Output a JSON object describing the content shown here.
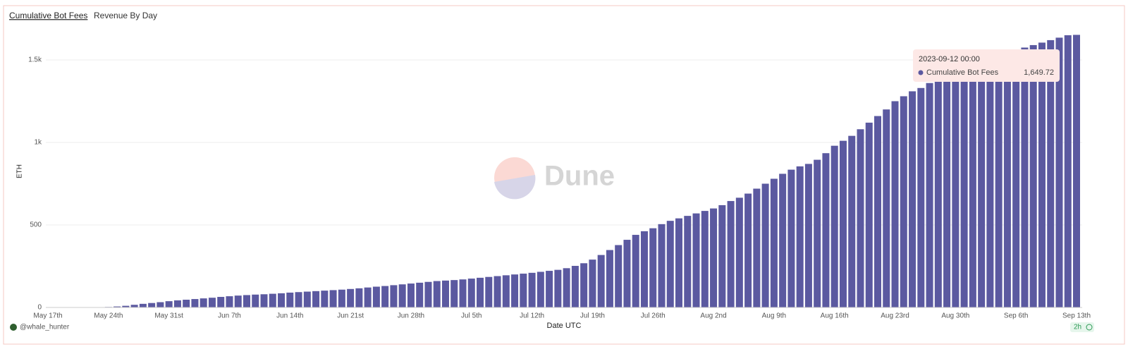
{
  "tabs": [
    "Cumulative Bot Fees",
    "Revenue By Day"
  ],
  "chart_data": {
    "type": "bar",
    "y_label": "ETH",
    "x_label": "Date UTC",
    "watermark": "Dune",
    "categories": [
      "May 17th",
      null,
      null,
      null,
      null,
      null,
      null,
      "May 24th",
      null,
      null,
      null,
      null,
      null,
      null,
      "May 31st",
      null,
      null,
      null,
      null,
      null,
      null,
      "Jun 7th",
      null,
      null,
      null,
      null,
      null,
      null,
      "Jun 14th",
      null,
      null,
      null,
      null,
      null,
      null,
      "Jun 21st",
      null,
      null,
      null,
      null,
      null,
      null,
      "Jun 28th",
      null,
      null,
      null,
      null,
      null,
      null,
      "Jul 5th",
      null,
      null,
      null,
      null,
      null,
      null,
      "Jul 12th",
      null,
      null,
      null,
      null,
      null,
      null,
      "Jul 19th",
      null,
      null,
      null,
      null,
      null,
      null,
      "Jul 26th",
      null,
      null,
      null,
      null,
      null,
      null,
      "Aug 2nd",
      null,
      null,
      null,
      null,
      null,
      null,
      "Aug 9th",
      null,
      null,
      null,
      null,
      null,
      null,
      "Aug 16th",
      null,
      null,
      null,
      null,
      null,
      null,
      "Aug 23rd",
      null,
      null,
      null,
      null,
      null,
      null,
      "Aug 30th",
      null,
      null,
      null,
      null,
      null,
      null,
      "Sep 6th",
      null,
      null,
      null,
      null,
      null,
      null,
      "Sep 13th"
    ],
    "series": [
      {
        "name": "Cumulative Bot Fees",
        "color": "#5b59a0",
        "values": [
          0,
          0.2,
          0.5,
          0.8,
          1,
          1.5,
          2,
          3,
          6,
          10,
          16,
          22,
          27,
          32,
          38,
          43,
          47,
          51,
          55,
          59,
          64,
          68,
          72,
          75,
          78,
          80,
          83,
          86,
          90,
          93,
          96,
          99,
          102,
          105,
          108,
          112,
          116,
          121,
          126,
          130,
          135,
          140,
          145,
          150,
          155,
          160,
          163,
          166,
          170,
          175,
          180,
          185,
          190,
          195,
          200,
          205,
          210,
          216,
          222,
          228,
          238,
          252,
          268,
          290,
          318,
          348,
          378,
          410,
          440,
          462,
          480,
          505,
          525,
          540,
          555,
          570,
          585,
          600,
          620,
          645,
          665,
          690,
          720,
          750,
          780,
          810,
          835,
          855,
          870,
          895,
          935,
          980,
          1010,
          1040,
          1080,
          1120,
          1160,
          1200,
          1250,
          1280,
          1310,
          1330,
          1360,
          1380,
          1400,
          1420,
          1440,
          1460,
          1480,
          1500,
          1520,
          1540,
          1560,
          1575,
          1590,
          1605,
          1620,
          1635,
          1649.72,
          1652
        ]
      }
    ],
    "ylim": [
      0,
      1700
    ],
    "yticks": [
      0,
      500,
      {
        "value": 1000,
        "label": "1k"
      },
      {
        "value": 1500,
        "label": "1.5k"
      }
    ],
    "grid": true,
    "tooltip": {
      "date": "2023-09-12 00:00",
      "series": "Cumulative Bot Fees",
      "value": {
        "value": 1649.72,
        "label": "1,649.72"
      }
    }
  },
  "footer": {
    "author": "@whale_hunter",
    "age": "2h"
  }
}
